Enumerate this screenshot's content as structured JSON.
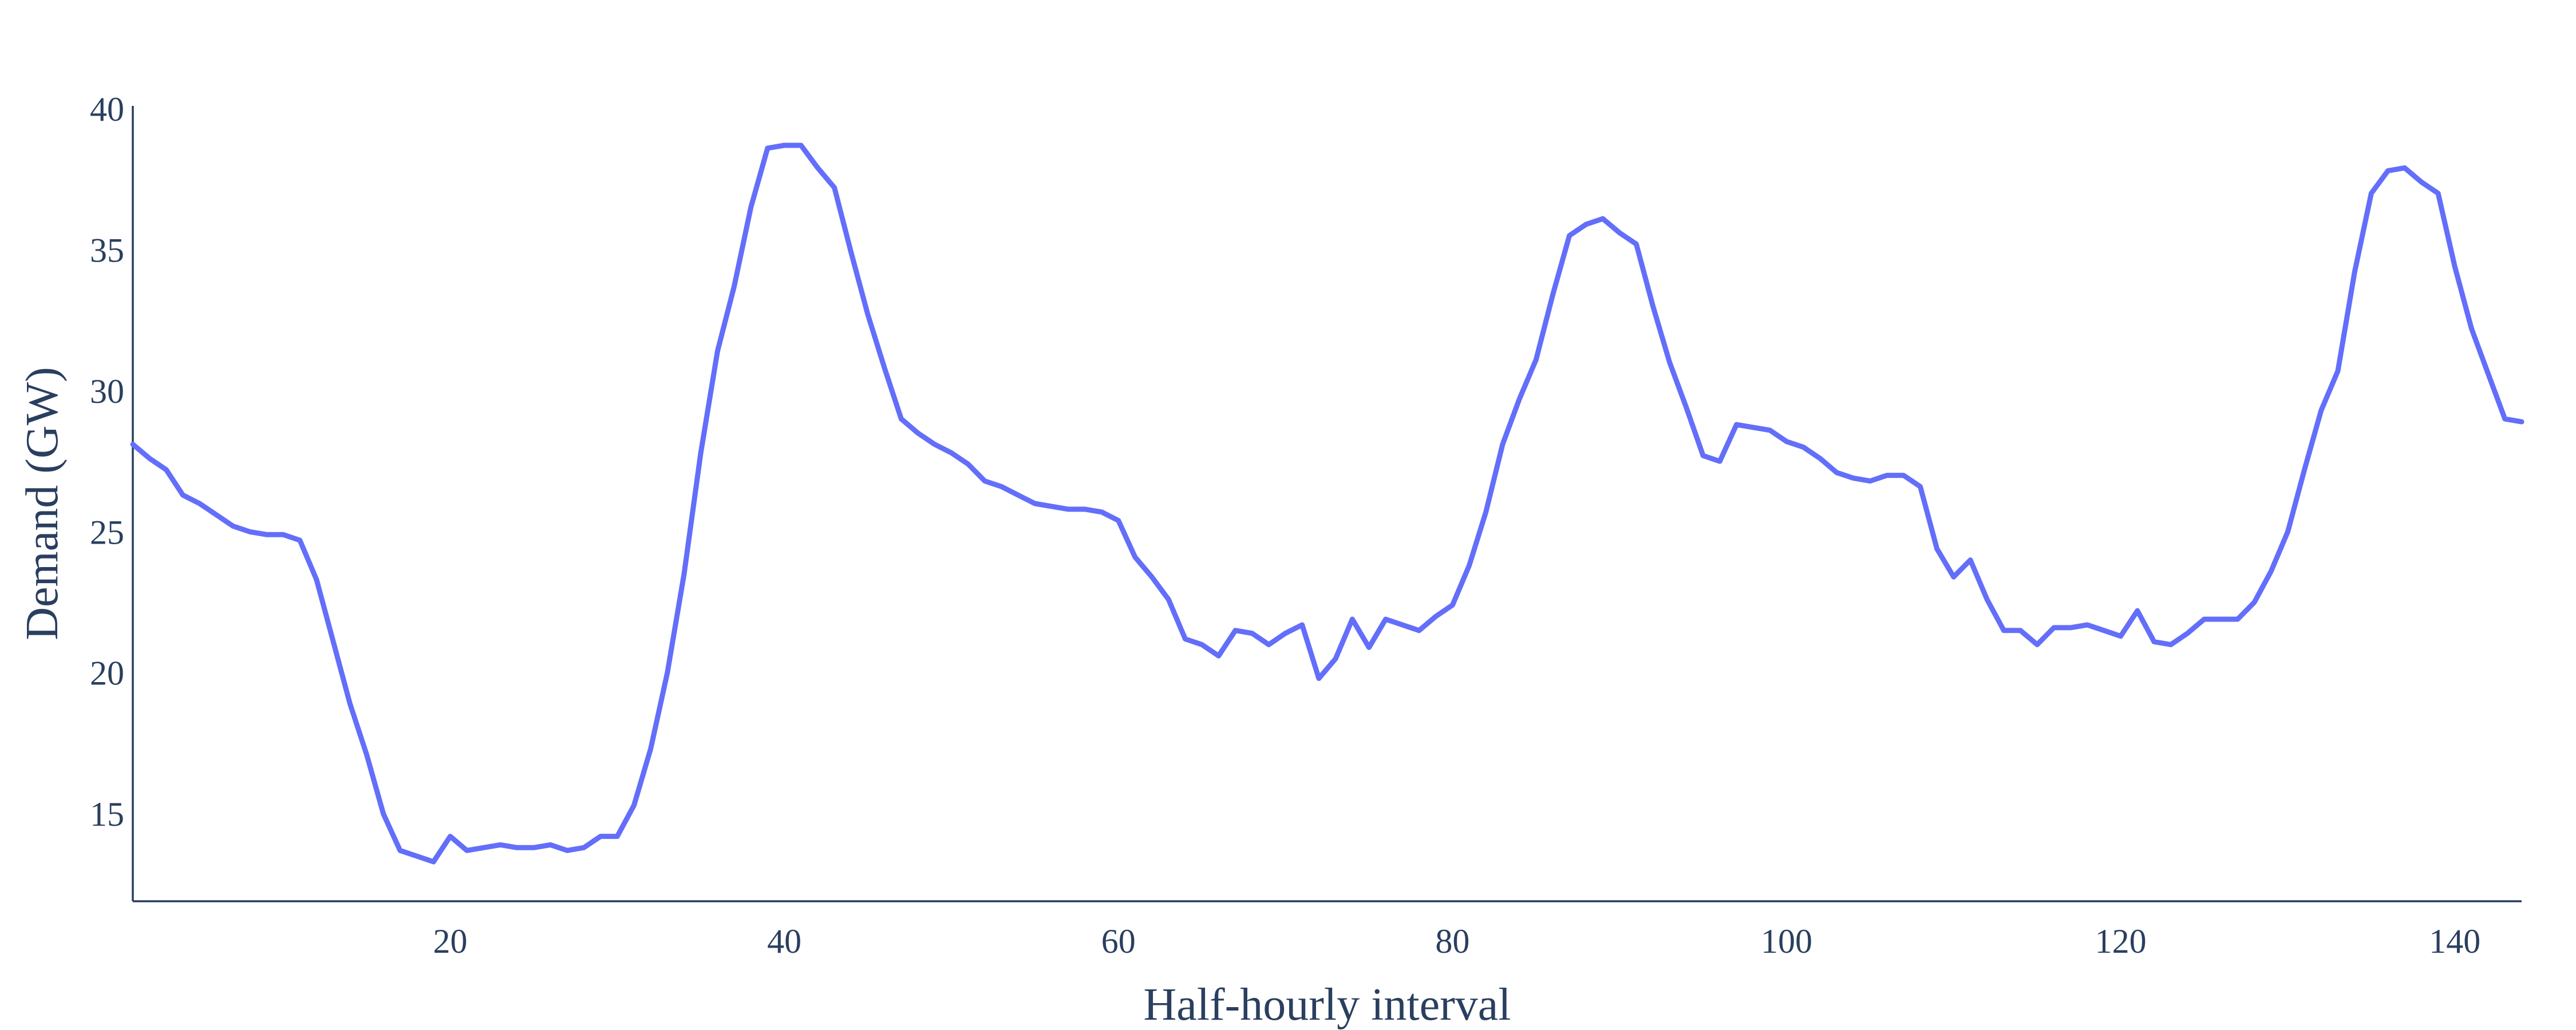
{
  "chart_data": {
    "type": "line",
    "title": "",
    "xlabel": "Half-hourly interval",
    "ylabel": "Demand (GW)",
    "xlim": [
      1,
      144
    ],
    "ylim": [
      11.9,
      40.1
    ],
    "x_ticks": [
      20,
      40,
      60,
      80,
      100,
      120,
      140
    ],
    "y_ticks": [
      15,
      20,
      25,
      30,
      35,
      40
    ],
    "grid": false,
    "series": [
      {
        "color": "#636efa",
        "x": [
          1,
          2,
          3,
          4,
          5,
          6,
          7,
          8,
          9,
          10,
          11,
          12,
          13,
          14,
          15,
          16,
          17,
          18,
          19,
          20,
          21,
          22,
          23,
          24,
          25,
          26,
          27,
          28,
          29,
          30,
          31,
          32,
          33,
          34,
          35,
          36,
          37,
          38,
          39,
          40,
          41,
          42,
          43,
          44,
          45,
          46,
          47,
          48,
          49,
          50,
          51,
          52,
          53,
          54,
          55,
          56,
          57,
          58,
          59,
          60,
          61,
          62,
          63,
          64,
          65,
          66,
          67,
          68,
          69,
          70,
          71,
          72,
          73,
          74,
          75,
          76,
          77,
          78,
          79,
          80,
          81,
          82,
          83,
          84,
          85,
          86,
          87,
          88,
          89,
          90,
          91,
          92,
          93,
          94,
          95,
          96,
          97,
          98,
          99,
          100,
          101,
          102,
          103,
          104,
          105,
          106,
          107,
          108,
          109,
          110,
          111,
          112,
          113,
          114,
          115,
          116,
          117,
          118,
          119,
          120,
          121,
          122,
          123,
          124,
          125,
          126,
          127,
          128,
          129,
          130,
          131,
          132,
          133,
          134,
          135,
          136,
          137,
          138,
          139,
          140,
          141,
          142,
          143,
          144
        ],
        "values": [
          28.1,
          27.6,
          27.2,
          26.3,
          26.0,
          25.6,
          25.2,
          25.0,
          24.9,
          24.9,
          24.7,
          23.3,
          21.1,
          18.9,
          17.1,
          15.0,
          13.7,
          13.5,
          13.3,
          14.2,
          13.7,
          13.8,
          13.9,
          13.8,
          13.8,
          13.9,
          13.7,
          13.8,
          14.2,
          14.2,
          15.3,
          17.3,
          20.0,
          23.5,
          27.8,
          31.4,
          33.7,
          36.5,
          38.6,
          38.7,
          38.7,
          37.9,
          37.2,
          34.9,
          32.7,
          30.8,
          29.0,
          28.5,
          28.1,
          27.8,
          27.4,
          26.8,
          26.6,
          26.3,
          26.0,
          25.9,
          25.8,
          25.8,
          25.7,
          25.4,
          24.1,
          23.4,
          22.6,
          21.2,
          21.0,
          20.6,
          21.5,
          21.4,
          21.0,
          21.4,
          21.7,
          19.8,
          20.5,
          21.9,
          20.9,
          21.9,
          21.7,
          21.5,
          22.0,
          22.4,
          23.8,
          25.7,
          28.1,
          29.7,
          31.1,
          33.4,
          35.5,
          35.9,
          36.1,
          35.6,
          35.2,
          33.0,
          31.0,
          29.4,
          27.7,
          27.5,
          28.8,
          28.7,
          28.6,
          28.2,
          28.0,
          27.6,
          27.1,
          26.9,
          26.8,
          27.0,
          27.0,
          26.6,
          24.4,
          23.4,
          24.0,
          22.6,
          21.5,
          21.5,
          21.0,
          21.6,
          21.6,
          21.7,
          21.5,
          21.3,
          22.2,
          21.1,
          21.0,
          21.4,
          21.9,
          21.9,
          21.9,
          22.5,
          23.6,
          25.0,
          27.2,
          29.3,
          30.7,
          34.2,
          37.0,
          37.8,
          37.9,
          37.4,
          37.0,
          34.4,
          32.2,
          30.6,
          29.0,
          28.9
        ]
      }
    ]
  }
}
